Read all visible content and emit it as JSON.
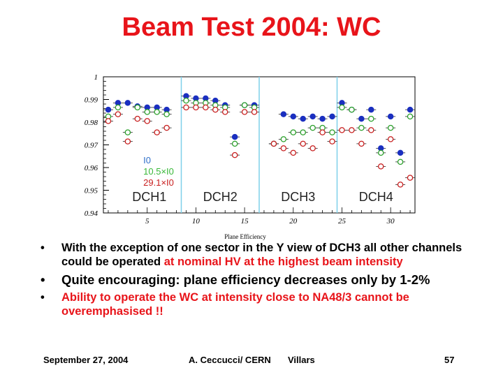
{
  "title": "Beam Test 2004: WC",
  "chart_data": {
    "type": "scatter",
    "title": "",
    "xlabel": "Plane Efficiency",
    "ylabel": "",
    "xlim": [
      0.5,
      32.5
    ],
    "ylim": [
      0.94,
      1.0
    ],
    "xticks": [
      5,
      10,
      15,
      20,
      25,
      30
    ],
    "yticks": [
      0.94,
      0.95,
      0.96,
      0.97,
      0.98,
      0.99,
      1
    ],
    "ytick_labels": [
      "0.94",
      "0.95",
      "0.96",
      "0.97",
      "0.98",
      "0.99",
      "1"
    ],
    "chamber_separators": [
      8.5,
      16.5,
      24.5
    ],
    "chamber_labels": [
      "DCH1",
      "DCH2",
      "DCH3",
      "DCH4"
    ],
    "legend": [
      {
        "label": "I0",
        "color": "#2f6fc9"
      },
      {
        "label": "10.5×I0",
        "color": "#38b838"
      },
      {
        "label": "29.1×I0",
        "color": "#c81e1e"
      }
    ],
    "series": [
      {
        "name": "I0",
        "color": "#1a2fc0",
        "fill": "#1a2fc0",
        "x": [
          1,
          2,
          3,
          4,
          5,
          6,
          7,
          9,
          10,
          11,
          12,
          13,
          14,
          15,
          16,
          18,
          19,
          20,
          21,
          22,
          23,
          24,
          25,
          26,
          27,
          28,
          29,
          30,
          31,
          32
        ],
        "y": [
          0.9855,
          0.9885,
          0.9885,
          0.987,
          0.9865,
          0.9865,
          0.9855,
          0.9915,
          0.9905,
          0.9905,
          0.9895,
          0.9875,
          0.9735,
          0.9875,
          0.9875,
          0.9705,
          0.9835,
          0.9825,
          0.9815,
          0.9825,
          0.9815,
          0.9825,
          0.9885,
          0.9855,
          0.9815,
          0.9855,
          0.9685,
          0.9825,
          0.9665,
          0.9855
        ]
      },
      {
        "name": "10.5×I0",
        "color": "#2aa02a",
        "fill": "#ffffff",
        "x": [
          1,
          2,
          3,
          4,
          5,
          6,
          7,
          9,
          10,
          11,
          12,
          13,
          14,
          15,
          16,
          18,
          19,
          20,
          21,
          22,
          23,
          24,
          25,
          26,
          27,
          28,
          29,
          30,
          31,
          32
        ],
        "y": [
          0.9825,
          0.9865,
          0.9755,
          0.9865,
          0.9845,
          0.9845,
          0.9835,
          0.9895,
          0.9885,
          0.9885,
          0.9875,
          0.9865,
          0.9705,
          0.9875,
          0.9865,
          0.9705,
          0.9725,
          0.9755,
          0.9755,
          0.9775,
          0.9775,
          0.9755,
          0.9865,
          0.9855,
          0.9775,
          0.9815,
          0.9665,
          0.9775,
          0.9625,
          0.9825
        ]
      },
      {
        "name": "29.1×I0",
        "color": "#c81e1e",
        "fill": "#ffffff",
        "x": [
          1,
          2,
          3,
          4,
          5,
          6,
          7,
          9,
          10,
          11,
          12,
          13,
          14,
          15,
          16,
          18,
          19,
          20,
          21,
          22,
          23,
          24,
          25,
          26,
          27,
          28,
          29,
          30,
          31,
          32
        ],
        "y": [
          0.9805,
          0.9835,
          0.9715,
          0.9815,
          0.9805,
          0.9755,
          0.9775,
          0.9865,
          0.9865,
          0.9865,
          0.9855,
          0.9845,
          0.9655,
          0.9845,
          0.9845,
          0.9705,
          0.9685,
          0.9665,
          0.9705,
          0.9685,
          0.9755,
          0.9715,
          0.9765,
          0.9765,
          0.9705,
          0.9765,
          0.9605,
          0.9725,
          0.9525,
          0.9555
        ]
      }
    ]
  },
  "bullets": {
    "dot": "•",
    "b1_text": "With the exception of one sector in the Y view of DCH3 all other channels could be operated ",
    "b1_highlight": "at nominal HV at the highest beam intensity",
    "b2_prefix": "Quite encouraging: ",
    "b2_text": "plane efficiency decreases only by 1-2%",
    "b3_text": "Ability to operate the WC at intensity close to NA48/3 cannot be overemphasised !!"
  },
  "footer": {
    "date": "September 27, 2004",
    "author": "A. Ceccucci/ CERN",
    "venue": "Villars",
    "page": "57"
  }
}
